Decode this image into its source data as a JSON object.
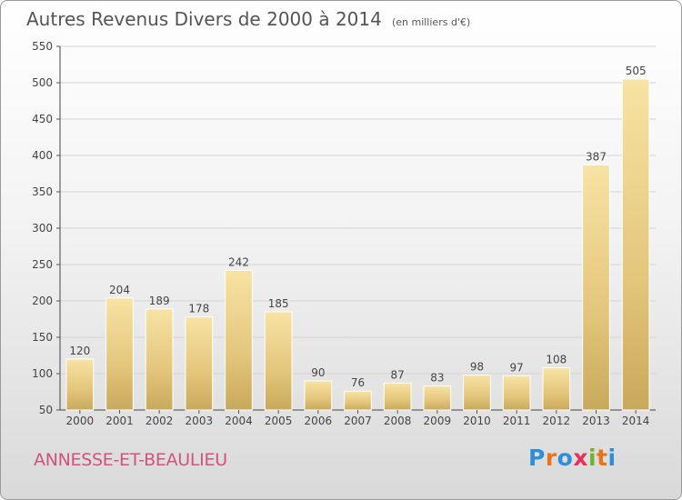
{
  "title": "Autres Revenus Divers de 2000 à 2014",
  "subtitle": "(en milliers d'€)",
  "place_name": "ANNESSE-ET-BEAULIEU",
  "logo": {
    "text": "Proxiti",
    "letter_colors": [
      "#2e8fd8",
      "#e8731c",
      "#2e8fd8",
      "#ea2e58",
      "#6cb52f",
      "#e8731c",
      "#2e8fd8"
    ]
  },
  "chart_data": {
    "type": "bar",
    "categories": [
      "2000",
      "2001",
      "2002",
      "2003",
      "2004",
      "2005",
      "2006",
      "2007",
      "2008",
      "2009",
      "2010",
      "2011",
      "2012",
      "2013",
      "2014"
    ],
    "values": [
      120,
      204,
      189,
      178,
      242,
      185,
      90,
      76,
      87,
      83,
      98,
      97,
      108,
      387,
      505
    ],
    "title": "Autres Revenus Divers de 2000 à 2014",
    "subtitle": "(en milliers d'€)",
    "xlabel": "",
    "ylabel": "",
    "ylim": [
      50,
      550
    ],
    "yticks": [
      50,
      100,
      150,
      200,
      250,
      300,
      350,
      400,
      450,
      500,
      550
    ],
    "grid": true,
    "bar_color": "#e5c878",
    "data_labels": true
  }
}
